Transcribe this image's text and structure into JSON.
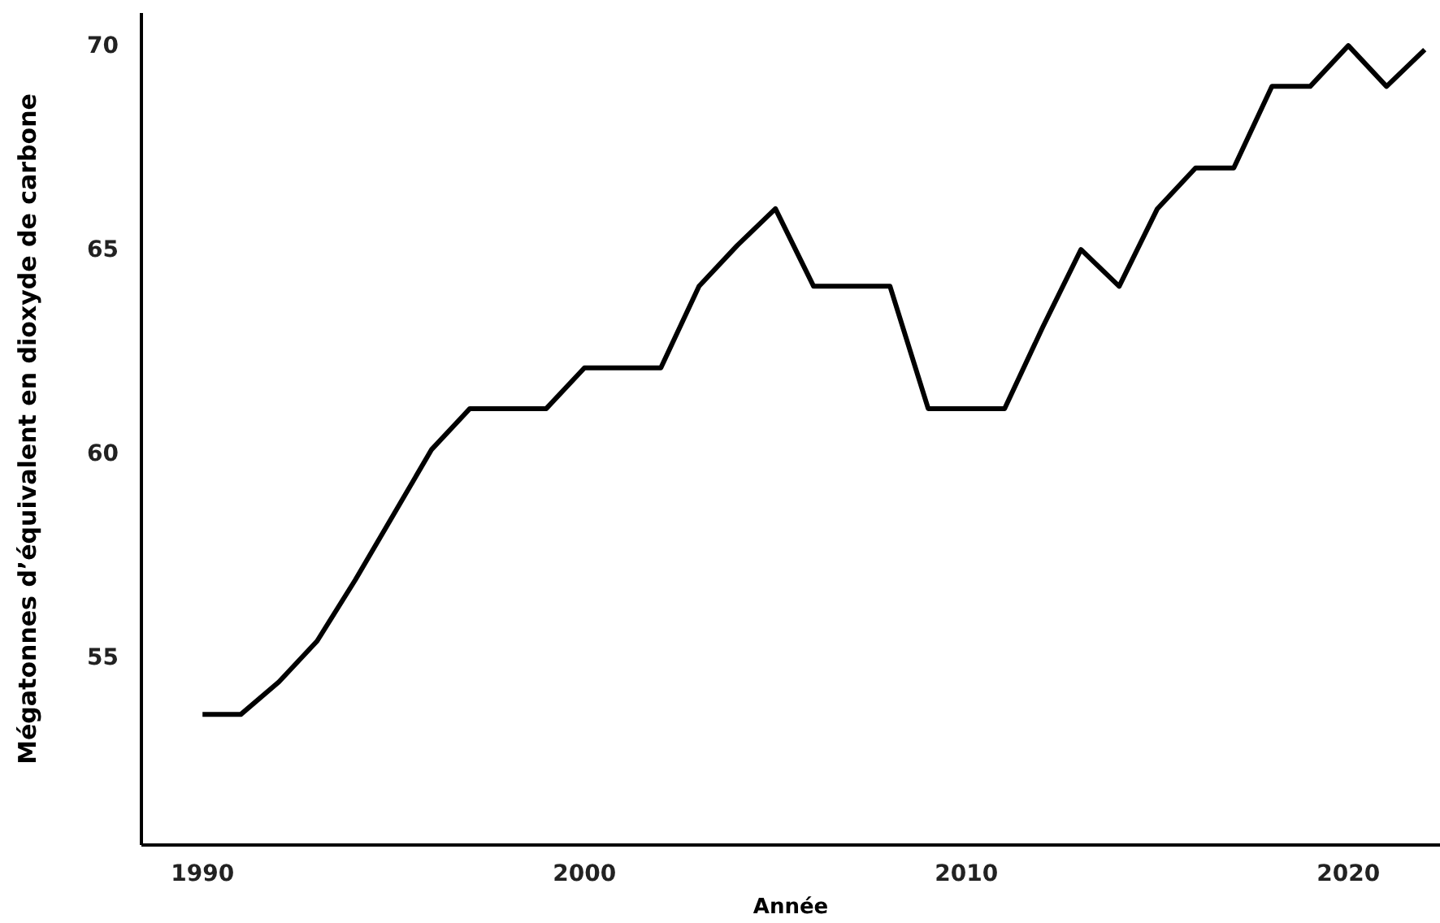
{
  "chart_data": {
    "type": "line",
    "xlabel": "Année",
    "ylabel": "Mégatonnes d’équivalent en dioxyde de carbone",
    "x": [
      1990,
      1991,
      1992,
      1993,
      1994,
      1995,
      1996,
      1997,
      1998,
      1999,
      2000,
      2001,
      2002,
      2003,
      2004,
      2005,
      2006,
      2007,
      2008,
      2009,
      2010,
      2011,
      2012,
      2013,
      2014,
      2015,
      2016,
      2017,
      2018,
      2019,
      2020,
      2021,
      2022
    ],
    "series": [
      {
        "color": "#000000",
        "values": [
          53.6,
          53.6,
          54.4,
          55.4,
          56.9,
          58.5,
          60.1,
          61.1,
          61.1,
          61.1,
          62.1,
          62.1,
          62.1,
          64.1,
          65.1,
          66.0,
          64.1,
          64.1,
          64.1,
          61.1,
          61.1,
          61.1,
          63.1,
          65.0,
          64.1,
          66.0,
          67.0,
          67.0,
          69.0,
          69.0,
          70.0,
          69.0,
          69.9
        ]
      }
    ],
    "xlim": [
      1988.4,
      2022.4
    ],
    "xticks": [
      1990,
      2000,
      2010,
      2020
    ],
    "ylim": [
      50.4,
      70.8
    ],
    "yticks": [
      55,
      60,
      65,
      70
    ],
    "line_style": "solid"
  }
}
